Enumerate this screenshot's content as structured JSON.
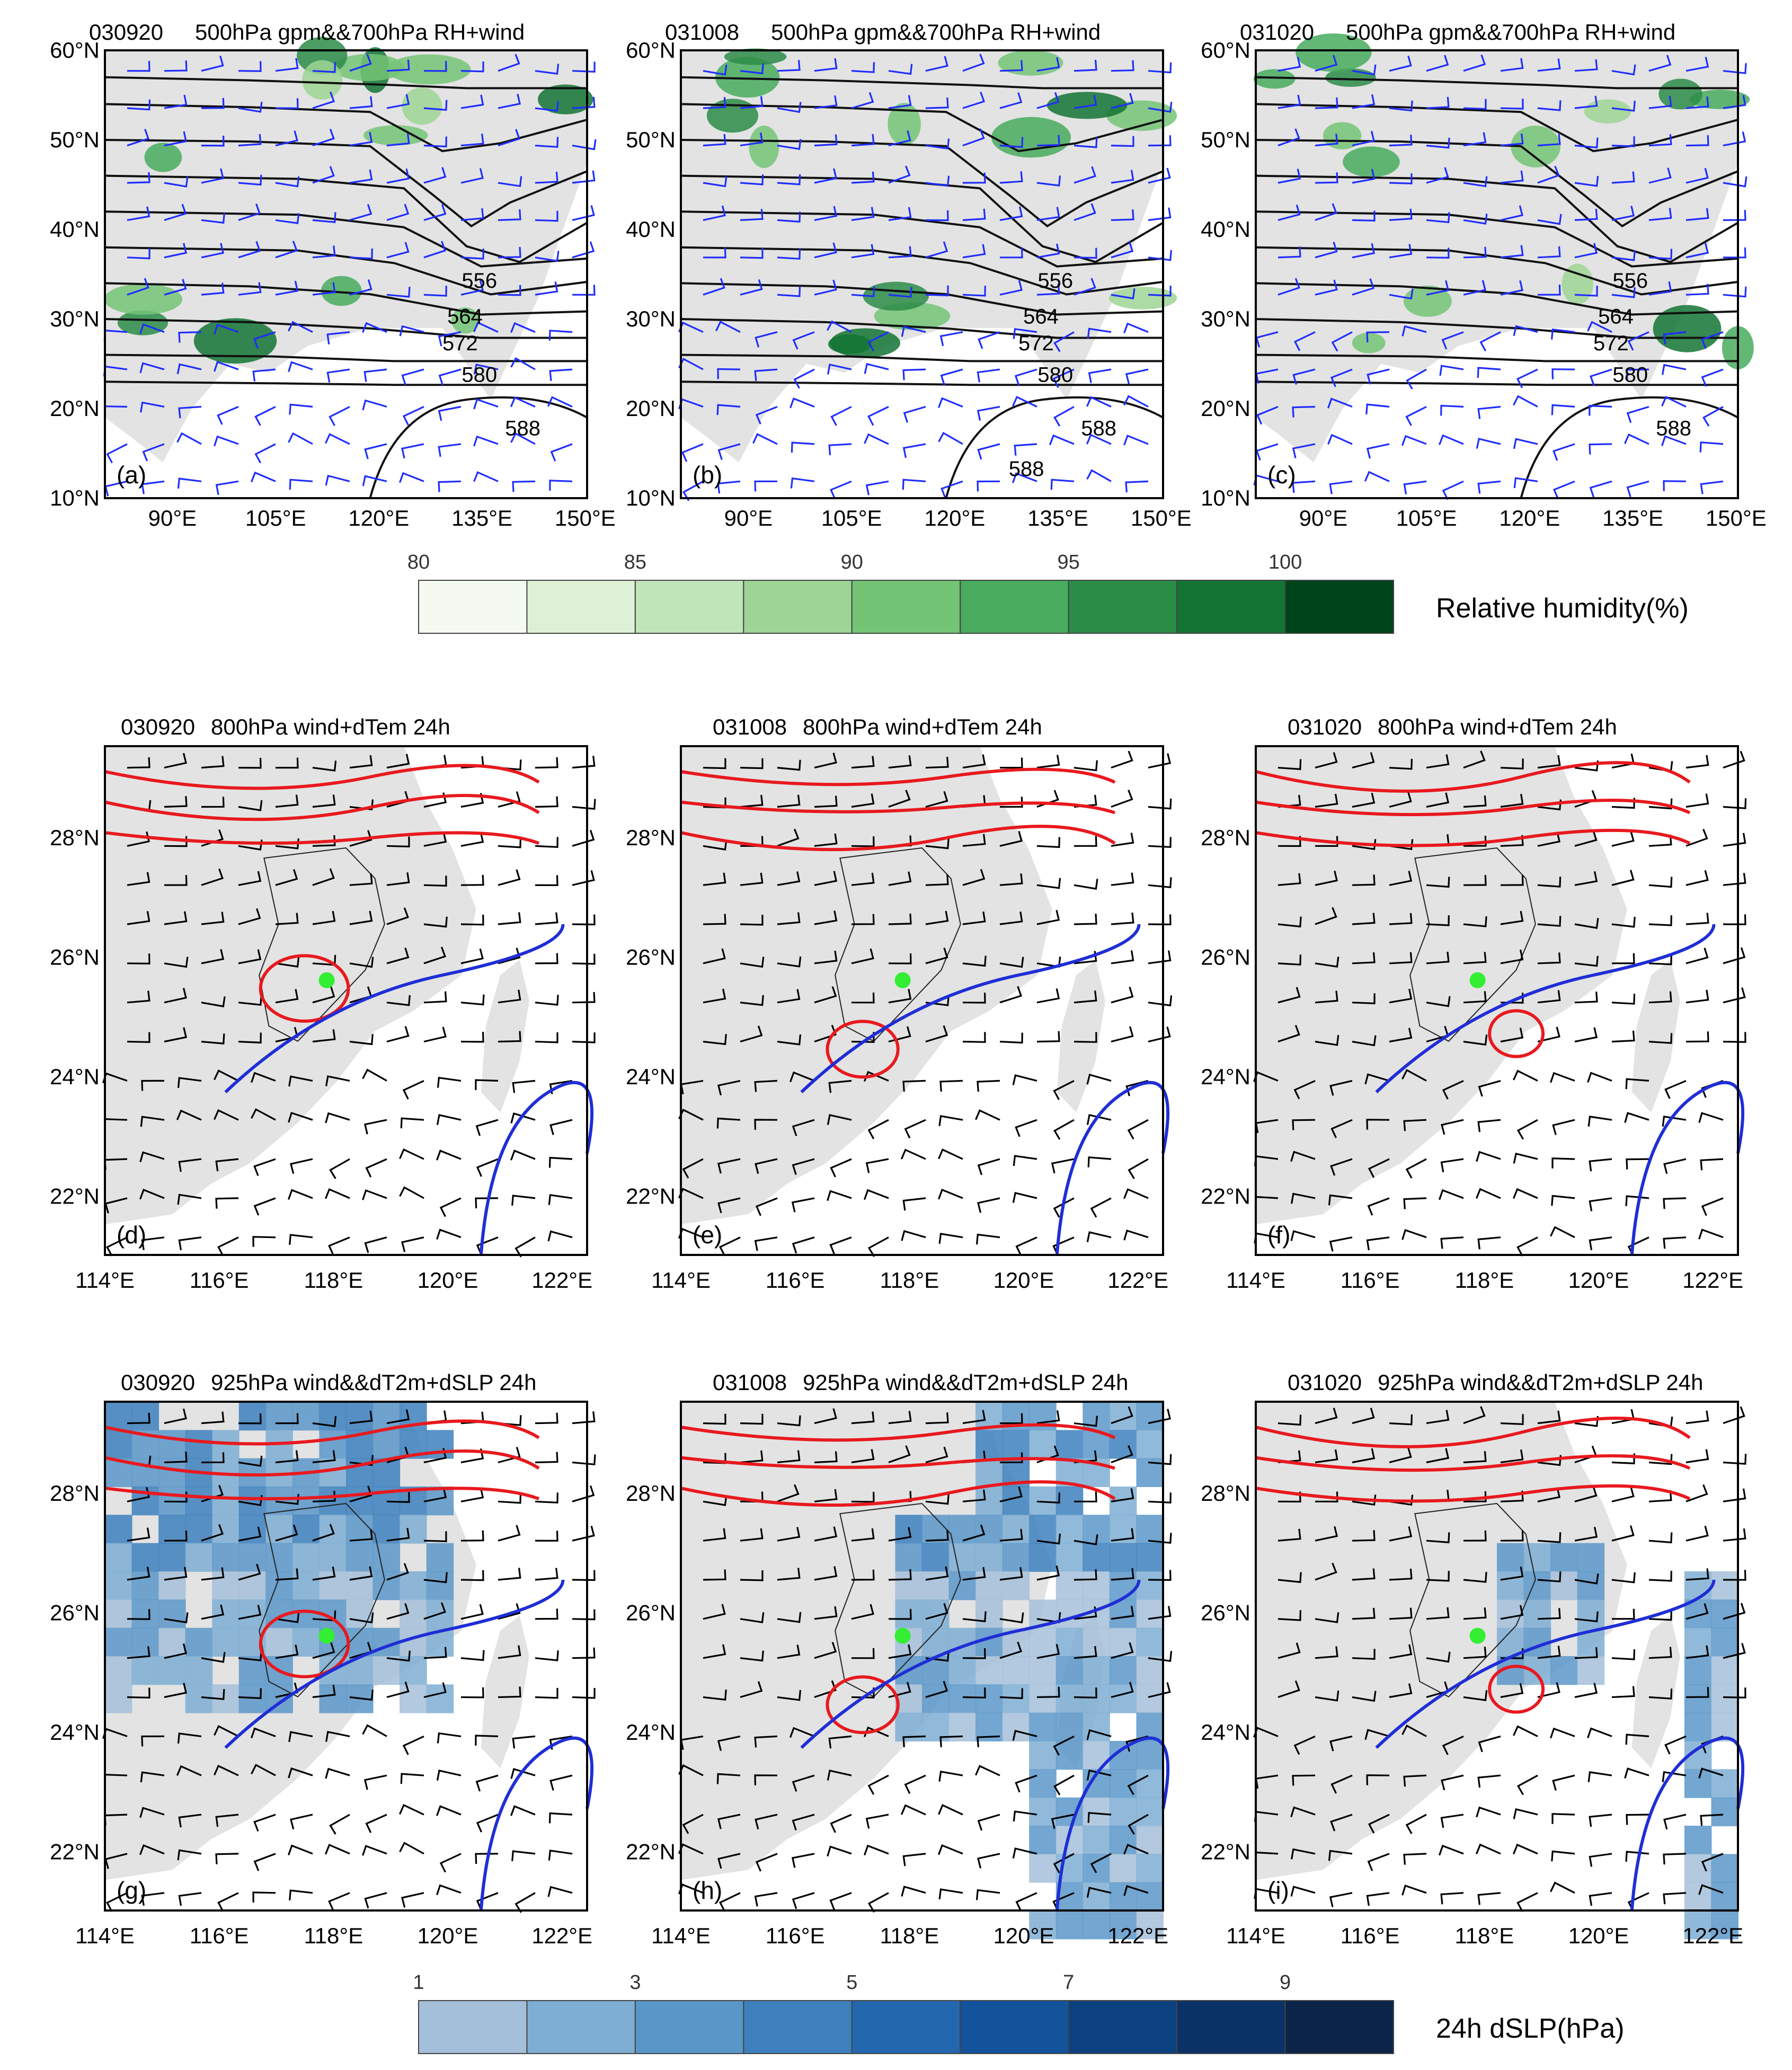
{
  "row1": {
    "panels": [
      {
        "id": "a",
        "date": "030920",
        "subtitle": "500hPa gpm&&700hPa RH+wind",
        "label": "(a)",
        "contour_labels": [
          "556",
          "564",
          "572",
          "580",
          "588"
        ]
      },
      {
        "id": "b",
        "date": "031008",
        "subtitle": "500hPa gpm&&700hPa RH+wind",
        "label": "(b)",
        "contour_labels": [
          "556",
          "564",
          "572",
          "580",
          "588",
          "588"
        ]
      },
      {
        "id": "c",
        "date": "031020",
        "subtitle": "500hPa gpm&&700hPa RH+wind",
        "label": "(c)",
        "contour_labels": [
          "556",
          "564",
          "572",
          "580",
          "588"
        ]
      }
    ],
    "lat_ticks": [
      "60°N",
      "50°N",
      "40°N",
      "30°N",
      "20°N",
      "10°N"
    ],
    "lon_ticks": [
      "90°E",
      "105°E",
      "120°E",
      "135°E",
      "150°E"
    ]
  },
  "rh_colorbar": {
    "title": "Relative humidity(%)",
    "ticks": [
      "80",
      "85",
      "90",
      "95",
      "100"
    ],
    "colors": [
      "#f4faf2",
      "#dcf1d6",
      "#bfe5b8",
      "#9dd594",
      "#74c475",
      "#48ab5e",
      "#2b8c48",
      "#137434",
      "#00441b"
    ]
  },
  "row2": {
    "panels": [
      {
        "id": "d",
        "date": "030920",
        "subtitle": "800hPa wind+dTem 24h",
        "label": "(d)"
      },
      {
        "id": "e",
        "date": "031008",
        "subtitle": "800hPa wind+dTem 24h",
        "label": "(e)"
      },
      {
        "id": "f",
        "date": "031020",
        "subtitle": "800hPa wind+dTem 24h",
        "label": "(f)"
      }
    ],
    "lat_ticks": [
      "28°N",
      "26°N",
      "24°N",
      "22°N"
    ],
    "lon_ticks": [
      "114°E",
      "116°E",
      "118°E",
      "120°E",
      "122°E"
    ]
  },
  "row3": {
    "panels": [
      {
        "id": "g",
        "date": "030920",
        "subtitle": "925hPa wind&&dT2m+dSLP 24h",
        "label": "(g)"
      },
      {
        "id": "h",
        "date": "031008",
        "subtitle": "925hPa wind&&dT2m+dSLP 24h",
        "label": "(h)"
      },
      {
        "id": "i",
        "date": "031020",
        "subtitle": "925hPa wind&&dT2m+dSLP 24h",
        "label": "(i)"
      }
    ],
    "lat_ticks": [
      "28°N",
      "26°N",
      "24°N",
      "22°N"
    ],
    "lon_ticks": [
      "114°E",
      "116°E",
      "118°E",
      "120°E",
      "122°E"
    ]
  },
  "slp_colorbar": {
    "title": "24h dSLP(hPa)",
    "ticks": [
      "1",
      "3",
      "5",
      "7",
      "9"
    ],
    "colors": [
      "#a4bfd9",
      "#7eaed4",
      "#5a97c9",
      "#3d80bd",
      "#2368ae",
      "#12539c",
      "#0b417f",
      "#0b3266",
      "#0b2448"
    ]
  },
  "colors": {
    "land": "#e3e3e3",
    "contour": "#111111",
    "wind_blue": "#1f2dff",
    "warm": "#e8191e",
    "cold": "#1f2ed6",
    "marker": "#33ee33"
  }
}
